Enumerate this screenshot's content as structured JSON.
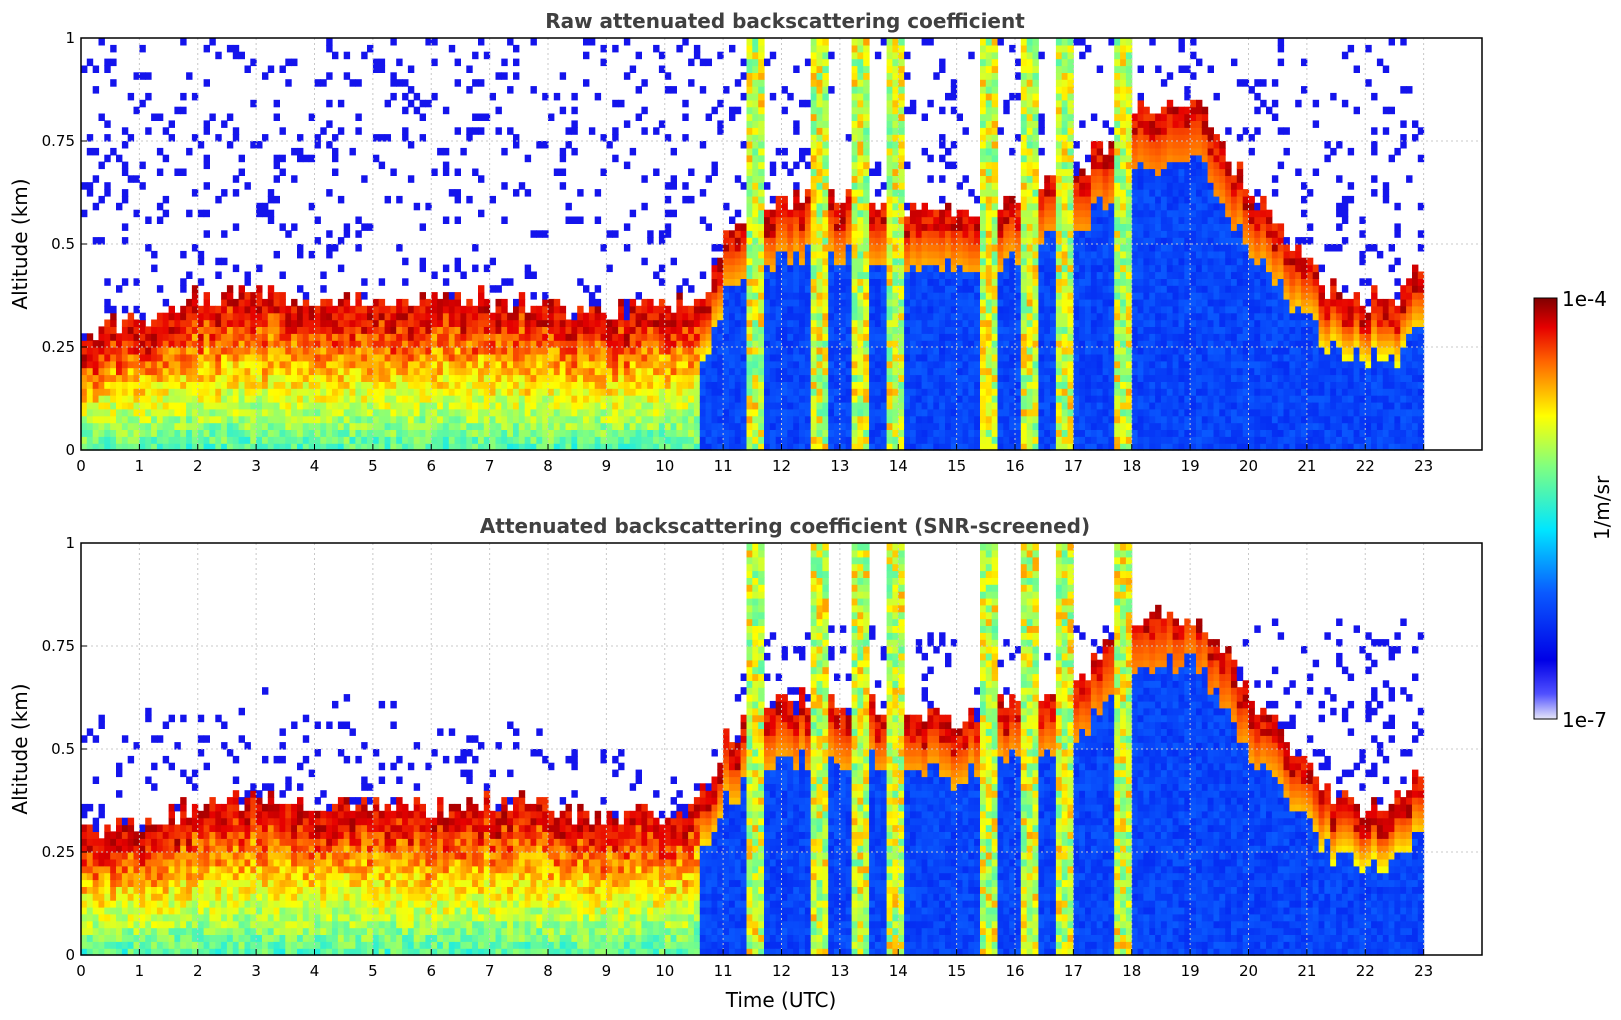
{
  "chart_data": [
    {
      "type": "heatmap",
      "title": "Raw attenuated backscattering coefficient",
      "xlabel": "",
      "ylabel": "Altitude (km)",
      "xlim": [
        0,
        24
      ],
      "ylim": [
        0,
        1
      ],
      "x_ticks": [
        "0",
        "1",
        "2",
        "3",
        "4",
        "5",
        "6",
        "7",
        "8",
        "9",
        "10",
        "11",
        "12",
        "13",
        "14",
        "15",
        "16",
        "17",
        "18",
        "19",
        "20",
        "21",
        "22",
        "23"
      ],
      "y_ticks": [
        "0",
        "0.25",
        "0.5",
        "0.75",
        "1"
      ],
      "grid": true,
      "data_end_hour": 23,
      "screened": false,
      "boundary_layer_top_km": [
        [
          0,
          0.22
        ],
        [
          1,
          0.24
        ],
        [
          2,
          0.3
        ],
        [
          3,
          0.32
        ],
        [
          4,
          0.3
        ],
        [
          5,
          0.3
        ],
        [
          6,
          0.29
        ],
        [
          7,
          0.3
        ],
        [
          8,
          0.29
        ],
        [
          9,
          0.27
        ],
        [
          10,
          0.28
        ],
        [
          10.7,
          0.32
        ],
        [
          11,
          0.45
        ],
        [
          11.5,
          0.5
        ],
        [
          12,
          0.55
        ],
        [
          13,
          0.55
        ],
        [
          14,
          0.52
        ],
        [
          15,
          0.5
        ],
        [
          16,
          0.55
        ],
        [
          17,
          0.6
        ],
        [
          18,
          0.75
        ],
        [
          19,
          0.8
        ],
        [
          19.5,
          0.68
        ],
        [
          20,
          0.55
        ],
        [
          20.5,
          0.47
        ],
        [
          21,
          0.38
        ],
        [
          21.5,
          0.3
        ],
        [
          22,
          0.3
        ],
        [
          22.5,
          0.3
        ],
        [
          23,
          0.4
        ]
      ],
      "cloud_columns_hours": [
        11.5,
        12.6,
        13.3,
        13.9,
        15.5,
        16.2,
        16.8,
        17.8
      ]
    },
    {
      "type": "heatmap",
      "title": "Attenuated backscattering coefficient (SNR-screened)",
      "xlabel": "Time (UTC)",
      "ylabel": "Altitude (km)",
      "xlim": [
        0,
        24
      ],
      "ylim": [
        0,
        1
      ],
      "x_ticks": [
        "0",
        "1",
        "2",
        "3",
        "4",
        "5",
        "6",
        "7",
        "8",
        "9",
        "10",
        "11",
        "12",
        "13",
        "14",
        "15",
        "16",
        "17",
        "18",
        "19",
        "20",
        "21",
        "22",
        "23"
      ],
      "y_ticks": [
        "0",
        "0.25",
        "0.5",
        "0.75",
        "1"
      ],
      "grid": true,
      "data_end_hour": 23,
      "screened": true,
      "screen_top_km": [
        [
          0,
          0.6
        ],
        [
          1,
          0.58
        ],
        [
          2,
          0.6
        ],
        [
          3,
          0.62
        ],
        [
          4,
          0.6
        ],
        [
          5,
          0.58
        ],
        [
          6,
          0.57
        ],
        [
          7,
          0.55
        ],
        [
          8,
          0.5
        ],
        [
          9,
          0.5
        ],
        [
          10,
          0.45
        ],
        [
          10.5,
          0.5
        ],
        [
          11,
          0.6
        ],
        [
          11.5,
          0.75
        ],
        [
          12,
          0.8
        ]
      ]
    }
  ],
  "colorbar": {
    "top_label": "1e-4",
    "bottom_label": "1e-7",
    "unit": "1/m/sr",
    "colormap": "jet"
  }
}
